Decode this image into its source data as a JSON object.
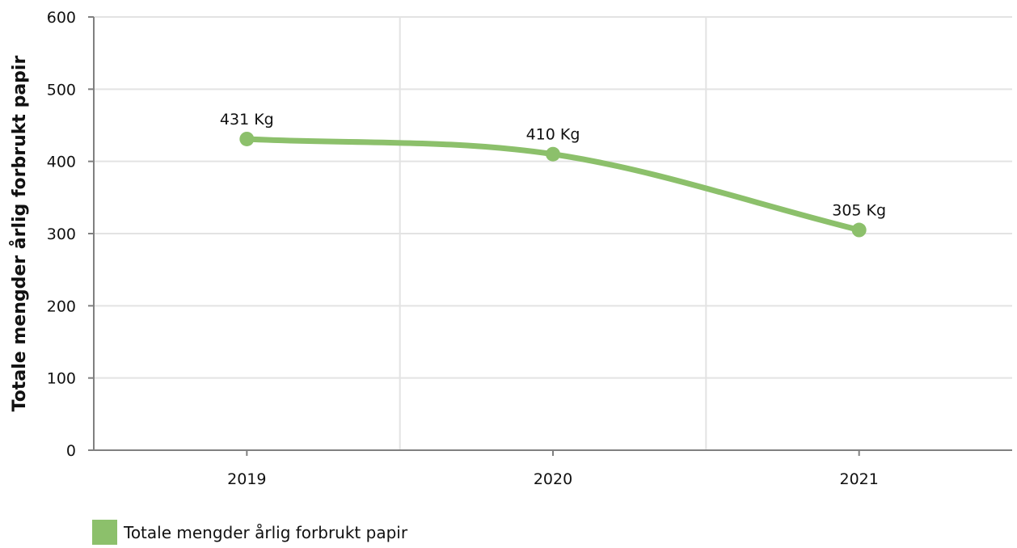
{
  "chart_data": {
    "type": "line",
    "categories": [
      "2019",
      "2020",
      "2021"
    ],
    "series": [
      {
        "name": "Totale mengder årlig forbrukt papir",
        "values": [
          431,
          410,
          305
        ],
        "labels": [
          "431 Kg",
          "410 Kg",
          "305 Kg"
        ]
      }
    ],
    "ylabel": "Totale mengder årlig forbrukt papir",
    "xlabel": "",
    "ylim": [
      0,
      600
    ],
    "yticks": [
      "0",
      "100",
      "200",
      "300",
      "400",
      "500",
      "600"
    ],
    "grid": true,
    "legend": "bottom-left",
    "colors": {
      "series": "#8cc06b",
      "grid": "#e3e3e3",
      "axis": "#808080"
    }
  }
}
